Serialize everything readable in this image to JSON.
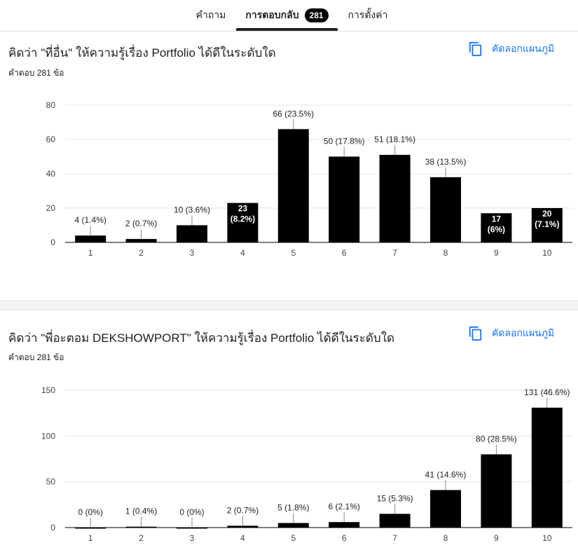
{
  "tabs": [
    {
      "label": "คำถาม",
      "active": false
    },
    {
      "label": "การตอบกลับ",
      "active": true,
      "badge": "281"
    },
    {
      "label": "การตั้งค่า",
      "active": false
    }
  ],
  "cards": [
    {
      "title": "คิดว่า \"ที่อื่น\" ให้ความรู้เรื่อง Portfolio ได้ดีในระดับใด",
      "subtitle": "คำตอบ 281 ข้อ",
      "copy_label": "คัดลอกแผนภูมิ"
    },
    {
      "title": "คิดว่า \"พี่อะตอม DEKSHOWPORT\" ให้ความรู้เรื่อง Portfolio ได้ดีในระดับใด",
      "subtitle": "คำตอบ 281 ข้อ",
      "copy_label": "คัดลอกแผนภูมิ"
    }
  ],
  "chart_data": [
    {
      "type": "bar",
      "categories": [
        "1",
        "2",
        "3",
        "4",
        "5",
        "6",
        "7",
        "8",
        "9",
        "10"
      ],
      "values": [
        4,
        2,
        10,
        23,
        66,
        50,
        51,
        38,
        17,
        20
      ],
      "labels": [
        "4 (1.4%)",
        "2 (0.7%)",
        "10 (3.6%)",
        "23 (8.2%)",
        "66 (23.5%)",
        "50 (17.8%)",
        "51 (18.1%)",
        "38 (13.5%)",
        "17 (6%)",
        "20 (7.1%)"
      ],
      "inside": [
        false,
        false,
        false,
        true,
        false,
        false,
        false,
        false,
        true,
        true
      ],
      "yticks": [
        0,
        20,
        40,
        60,
        80
      ],
      "ylim": [
        0,
        80
      ],
      "bar_color": "#000000"
    },
    {
      "type": "bar",
      "categories": [
        "1",
        "2",
        "3",
        "4",
        "5",
        "6",
        "7",
        "8",
        "9",
        "10"
      ],
      "values": [
        0,
        1,
        0,
        2,
        5,
        6,
        15,
        41,
        80,
        131
      ],
      "labels": [
        "0 (0%)",
        "1 (0.4%)",
        "0 (0%)",
        "2 (0.7%)",
        "5 (1.8%)",
        "6 (2.1%)",
        "15 (5.3%)",
        "41 (14.6%)",
        "80 (28.5%)",
        "131 (46.6%)"
      ],
      "inside": [
        false,
        false,
        false,
        false,
        false,
        false,
        false,
        false,
        false,
        false
      ],
      "yticks": [
        0,
        50,
        100,
        150
      ],
      "ylim": [
        0,
        150
      ],
      "bar_color": "#000000"
    }
  ]
}
